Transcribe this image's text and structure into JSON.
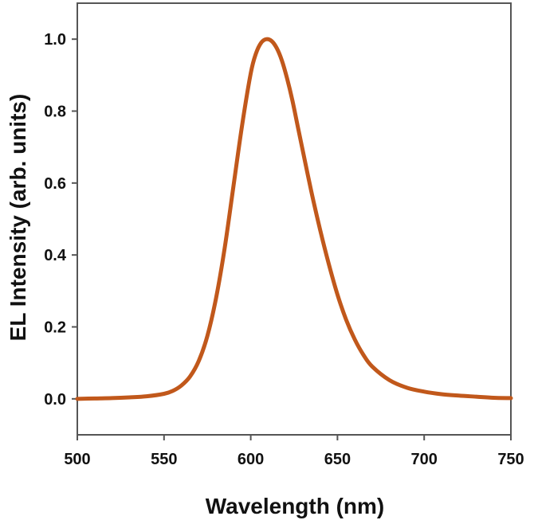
{
  "chart_data": {
    "type": "line",
    "title": "",
    "xlabel": "Wavelength (nm)",
    "ylabel": "EL Intensity (arb. units)",
    "xlim": [
      500,
      750
    ],
    "ylim": [
      -0.1,
      1.1
    ],
    "xticks": [
      500,
      550,
      600,
      650,
      700,
      750
    ],
    "xtick_labels": [
      "500",
      "550",
      "600",
      "650",
      "700",
      "750"
    ],
    "yticks": [
      0.0,
      0.2,
      0.4,
      0.6,
      0.8,
      1.0
    ],
    "ytick_labels": [
      "0.0",
      "0.2",
      "0.4",
      "0.6",
      "0.8",
      "1.0"
    ],
    "grid": false,
    "legend": "none",
    "series": [
      {
        "color": "#C1581B",
        "x": [
          500,
          510,
          520,
          530,
          540,
          550,
          555,
          560,
          565,
          570,
          575,
          580,
          585,
          590,
          595,
          600,
          603,
          606,
          609,
          612,
          615,
          618,
          621,
          624,
          627,
          630,
          635,
          640,
          645,
          650,
          655,
          660,
          665,
          670,
          680,
          690,
          700,
          710,
          720,
          730,
          740,
          750
        ],
        "y": [
          0.0,
          0.001,
          0.002,
          0.004,
          0.007,
          0.014,
          0.022,
          0.037,
          0.062,
          0.105,
          0.175,
          0.28,
          0.42,
          0.59,
          0.76,
          0.905,
          0.96,
          0.99,
          1.0,
          0.995,
          0.975,
          0.94,
          0.89,
          0.83,
          0.76,
          0.69,
          0.575,
          0.47,
          0.375,
          0.29,
          0.22,
          0.165,
          0.122,
          0.09,
          0.052,
          0.031,
          0.02,
          0.013,
          0.009,
          0.006,
          0.003,
          0.002
        ]
      }
    ]
  }
}
